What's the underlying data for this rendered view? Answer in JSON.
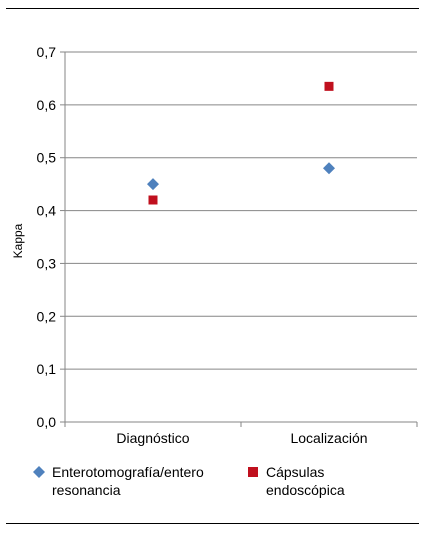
{
  "chart_data": {
    "type": "scatter",
    "categories": [
      "Diagnóstico",
      "Localización"
    ],
    "ylabel": "Kappa",
    "ylim": [
      0,
      0.7
    ],
    "yticks": [
      "0,0",
      "0,1",
      "0,2",
      "0,3",
      "0,4",
      "0,5",
      "0,6",
      "0,7"
    ],
    "grid": true,
    "legend_position": "bottom",
    "series": [
      {
        "name": "Enterotomografía/entero resonancia",
        "name_line1": "Enterotomografía/entero",
        "name_line2": "resonancia",
        "marker": "diamond",
        "color": "#4F81BD",
        "values": [
          0.45,
          0.48
        ]
      },
      {
        "name": "Cápsulas endoscópica",
        "marker": "square",
        "color": "#C0101E",
        "values": [
          0.42,
          0.635
        ]
      }
    ]
  }
}
